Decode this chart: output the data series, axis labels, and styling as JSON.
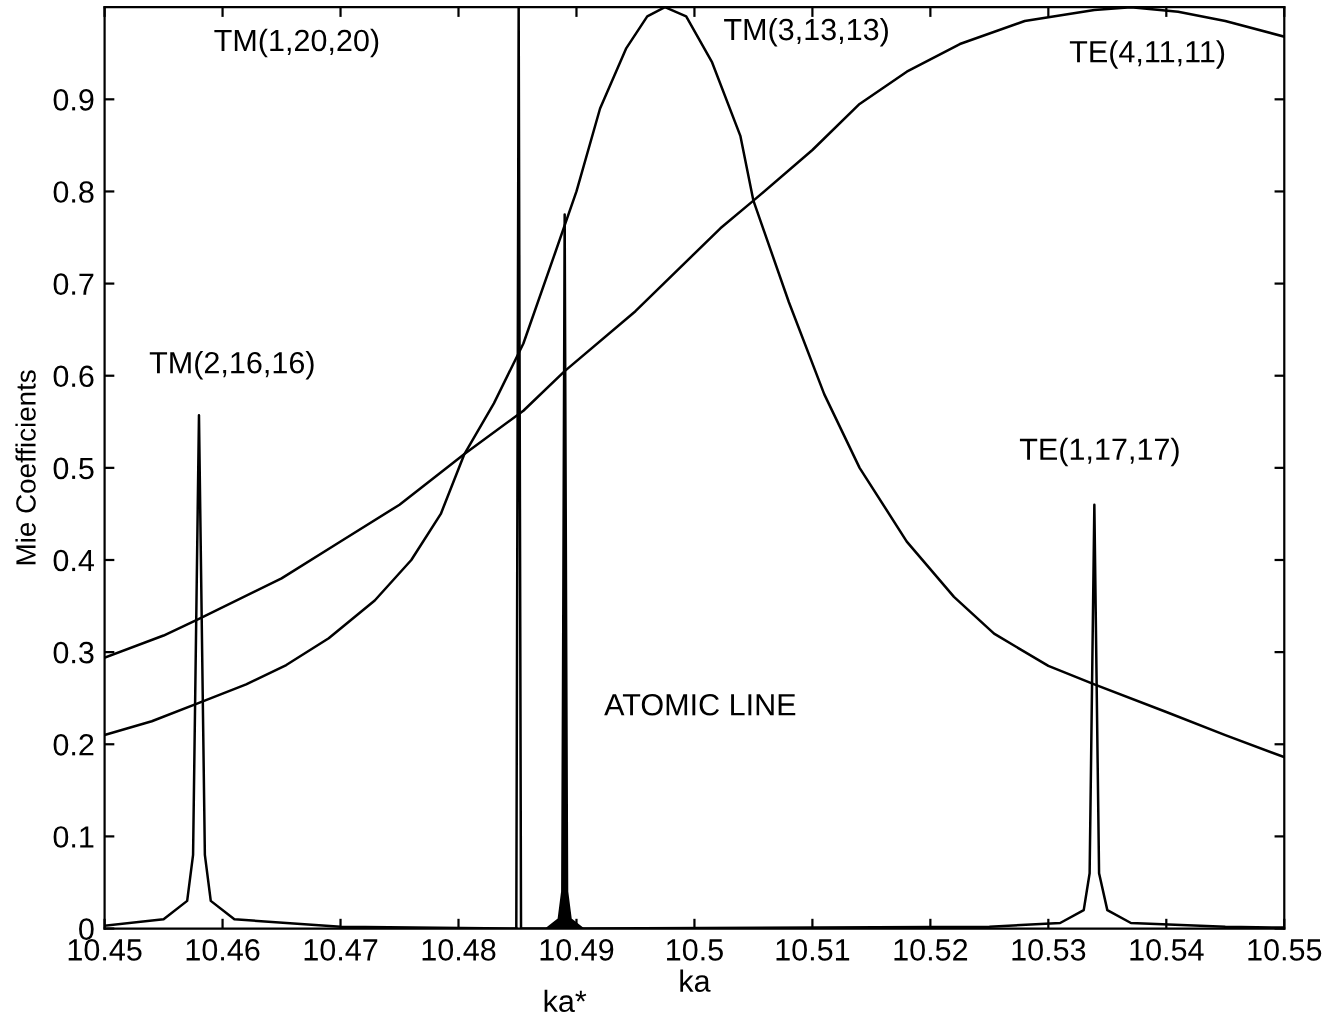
{
  "chart_data": {
    "type": "line",
    "ylabel": "Mie Coefficients",
    "xlabel": "ka",
    "xlim": [
      10.45,
      10.55
    ],
    "ylim": [
      0,
      1
    ],
    "xticks": [
      10.45,
      10.46,
      10.47,
      10.48,
      10.49,
      10.5,
      10.51,
      10.52,
      10.53,
      10.54,
      10.55
    ],
    "yticks": [
      0,
      0.1,
      0.2,
      0.3,
      0.4,
      0.5,
      0.6,
      0.7,
      0.8,
      0.9
    ],
    "grid": false,
    "legend": false,
    "marker": "none",
    "line_style": "solid",
    "series": [
      {
        "color": "#000000",
        "x": [
          10.45,
          10.454,
          10.458,
          10.462,
          10.4654,
          10.469,
          10.4729,
          10.476,
          10.4785,
          10.4805,
          10.483,
          10.4855,
          10.4881,
          10.49,
          10.492,
          10.4942,
          10.496,
          10.4975,
          10.4993,
          10.5015,
          10.5039,
          10.505,
          10.508,
          10.511,
          10.514,
          10.518,
          10.522,
          10.5254,
          10.53,
          10.5339,
          10.54,
          10.545,
          10.55
        ],
        "values": [
          0.21,
          0.225,
          0.245,
          0.265,
          0.286,
          0.315,
          0.356,
          0.4,
          0.45,
          0.515,
          0.57,
          0.635,
          0.73,
          0.8,
          0.89,
          0.955,
          0.99,
          1.0,
          0.99,
          0.94,
          0.86,
          0.79,
          0.68,
          0.58,
          0.5,
          0.42,
          0.36,
          0.32,
          0.285,
          0.265,
          0.235,
          0.21,
          0.186
        ]
      },
      {
        "color": "#000000",
        "x": [
          10.45,
          10.455,
          10.458,
          10.465,
          10.47,
          10.475,
          10.4805,
          10.4855,
          10.489,
          10.495,
          10.5022,
          10.505,
          10.51,
          10.514,
          10.518,
          10.5225,
          10.528,
          10.5339,
          10.537,
          10.541,
          10.545,
          10.55
        ],
        "values": [
          0.294,
          0.318,
          0.336,
          0.38,
          0.42,
          0.46,
          0.515,
          0.562,
          0.605,
          0.67,
          0.76,
          0.79,
          0.845,
          0.895,
          0.93,
          0.96,
          0.985,
          0.997,
          1.0,
          0.995,
          0.985,
          0.968
        ]
      },
      {
        "color": "#000000",
        "x": [
          10.45,
          10.455,
          10.457,
          10.4575,
          10.458,
          10.4585,
          10.459,
          10.461,
          10.47,
          10.4849
        ],
        "values": [
          0.003,
          0.01,
          0.03,
          0.08,
          0.557,
          0.08,
          0.03,
          0.01,
          0.002,
          0.0
        ]
      },
      {
        "color": "#000000",
        "x": [
          10.4849,
          10.4851,
          10.4853,
          10.4875
        ],
        "values": [
          0.0,
          1.0,
          0.0,
          0.0
        ]
      },
      {
        "type": "area",
        "color": "#000000",
        "x": [
          10.4875,
          10.4885,
          10.4888,
          10.489,
          10.4892,
          10.4895,
          10.4905
        ],
        "values": [
          0.0,
          0.01,
          0.04,
          0.775,
          0.04,
          0.01,
          0.0
        ]
      },
      {
        "color": "#000000",
        "x": [
          10.4905,
          10.525,
          10.531,
          10.533,
          10.5335,
          10.5339,
          10.5343,
          10.535,
          10.537,
          10.545,
          10.55
        ],
        "values": [
          0.0,
          0.002,
          0.006,
          0.02,
          0.06,
          0.46,
          0.06,
          0.02,
          0.006,
          0.002,
          0.001
        ]
      }
    ],
    "annotations": [
      "TM(1,20,20)",
      {
        "text": "TM(3,13,13)",
        "x": 10.4975,
        "y": 1.0
      },
      {
        "text": "TE(4,11,11)",
        "x": 10.537,
        "y": 1.0
      },
      {
        "text": "TM(2,16,16)",
        "x": 10.458,
        "y": 0.557
      },
      {
        "text": "TE(1,17,17)",
        "x": 10.5339,
        "y": 0.46
      },
      "ATOMIC LINE",
      {
        "text": "ka*",
        "x": 10.489,
        "y": 0
      }
    ]
  }
}
